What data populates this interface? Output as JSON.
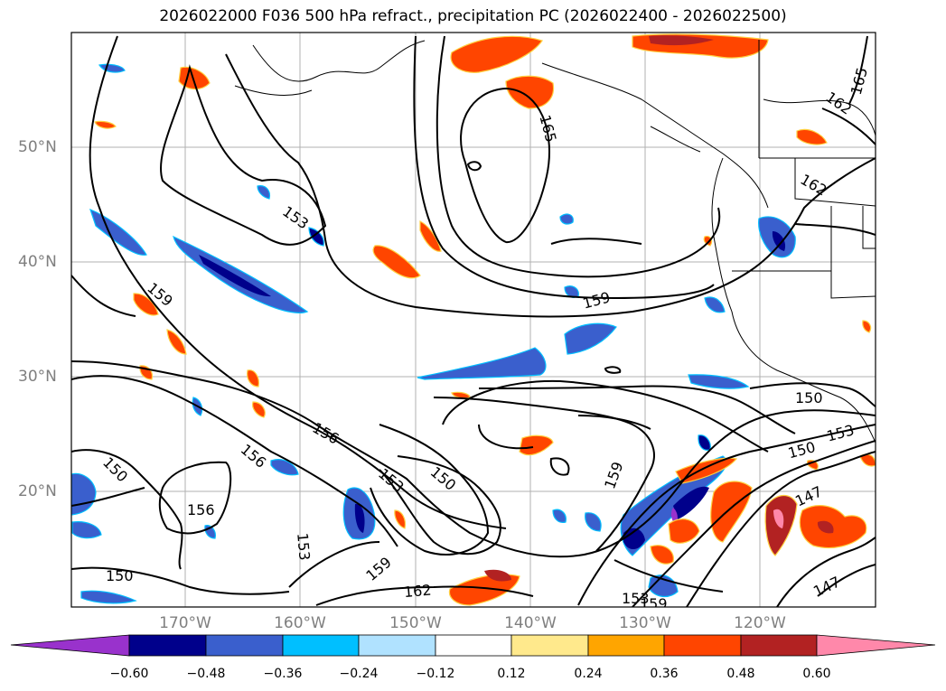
{
  "title": "2026022000 F036 500 hPa refract., precipitation PC (2026022400 - 2026022500)",
  "map": {
    "lat_ticks": [
      "50°N",
      "40°N",
      "30°N",
      "20°N"
    ],
    "lon_ticks": [
      "170°W",
      "160°W",
      "150°W",
      "140°W",
      "130°W",
      "120°W"
    ],
    "contour_labels": [
      "165",
      "165",
      "162",
      "162",
      "153",
      "159",
      "159",
      "159",
      "159",
      "156",
      "156",
      "156",
      "153",
      "150",
      "150",
      "150",
      "150",
      "153",
      "153",
      "147",
      "147",
      "153",
      "159",
      "162",
      "150"
    ]
  },
  "colorbar": {
    "labels": [
      "−0.60",
      "−0.48",
      "−0.36",
      "−0.24",
      "−0.12",
      "0.12",
      "0.24",
      "0.36",
      "0.48",
      "0.60"
    ],
    "colors": [
      "#9932cc",
      "#00008b",
      "#3a5fcd",
      "#00bfff",
      "#b0e2ff",
      "#ffffff",
      "#ffe98c",
      "#ffa500",
      "#ff4500",
      "#b22222",
      "#ff88aa"
    ]
  }
}
